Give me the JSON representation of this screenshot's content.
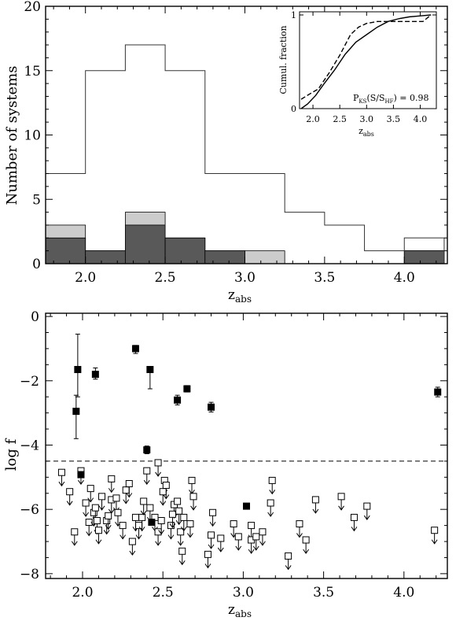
{
  "chart_data": [
    {
      "type": "bar",
      "ylabel": "Number of systems",
      "xlabel": "z",
      "xlabel_sub": "abs",
      "xlim": [
        1.75,
        4.27
      ],
      "ylim": [
        0,
        20
      ],
      "xticks": [
        "2.0",
        "2.5",
        "3.0",
        "3.5",
        "4.0"
      ],
      "xtick_values": [
        2.0,
        2.5,
        3.0,
        3.5,
        4.0
      ],
      "yticks": [
        "0",
        "5",
        "10",
        "15",
        "20"
      ],
      "ytick_values": [
        0,
        5,
        10,
        15,
        20
      ],
      "bin_edges": [
        1.75,
        2.0,
        2.25,
        2.5,
        2.75,
        3.0,
        3.25,
        3.5,
        3.75,
        4.0,
        4.25
      ],
      "series": [
        {
          "style": "outline",
          "values": [
            7,
            15,
            17,
            15,
            7,
            7,
            4,
            3,
            1,
            2
          ]
        },
        {
          "style": "light-gray",
          "values": [
            3,
            1,
            4,
            2,
            1,
            1,
            0,
            0,
            0,
            1
          ]
        },
        {
          "style": "dark-gray",
          "values": [
            2,
            1,
            3,
            2,
            1,
            0,
            0,
            0,
            0,
            1
          ]
        }
      ],
      "colors": {
        "outline": "#333333",
        "light": "#cccccc",
        "dark": "#595959"
      }
    },
    {
      "type": "line",
      "xlim": [
        1.75,
        4.3
      ],
      "ylim": [
        0,
        1
      ],
      "xticks": [
        "2.0",
        "2.5",
        "3.0",
        "3.5",
        "4.0"
      ],
      "xtick_values": [
        2.0,
        2.5,
        3.0,
        3.5,
        4.0
      ],
      "yticks": [
        "0",
        "1"
      ],
      "ytick_values": [
        0,
        1
      ],
      "ylabel": "Cumul. fraction",
      "xlabel": "z",
      "xlabel_sub": "abs",
      "annotation": {
        "main": "P",
        "sub1": "KS",
        "mid": "(S/S",
        "sub2": "HF",
        "tail": ") = 0.98"
      },
      "series": [
        {
          "style": "solid",
          "x": [
            1.78,
            1.9,
            2.05,
            2.2,
            2.4,
            2.6,
            2.8,
            3.0,
            3.2,
            3.4,
            3.6,
            3.8,
            4.0,
            4.2
          ],
          "y": [
            0.0,
            0.05,
            0.14,
            0.26,
            0.41,
            0.58,
            0.71,
            0.79,
            0.87,
            0.93,
            0.96,
            0.98,
            0.99,
            1.0
          ]
        },
        {
          "style": "dashed",
          "x": [
            1.78,
            1.95,
            2.1,
            2.3,
            2.5,
            2.7,
            2.85,
            3.0,
            3.2,
            3.4,
            3.6,
            3.8,
            4.05,
            4.2
          ],
          "y": [
            0.1,
            0.16,
            0.21,
            0.38,
            0.57,
            0.79,
            0.87,
            0.91,
            0.93,
            0.93,
            0.93,
            0.93,
            0.93,
            1.0
          ]
        }
      ]
    },
    {
      "type": "scatter",
      "ylabel": "log f",
      "xlabel": "z",
      "xlabel_sub": "abs",
      "xlim": [
        1.77,
        4.27
      ],
      "ylim": [
        -8.15,
        0.1
      ],
      "xticks": [
        "2.0",
        "2.5",
        "3.0",
        "3.5",
        "4.0"
      ],
      "xtick_values": [
        2.0,
        2.5,
        3.0,
        3.5,
        4.0
      ],
      "yticks": [
        "0",
        "−2",
        "−4",
        "−6",
        "−8"
      ],
      "ytick_values": [
        0,
        -2,
        -4,
        -6,
        -8
      ],
      "threshold": -4.5,
      "detections": [
        {
          "x": 1.96,
          "y": -2.95,
          "err_lo": 0.85,
          "err_hi": 0.5
        },
        {
          "x": 1.97,
          "y": -1.65,
          "err_lo": 0.85,
          "err_hi": 1.1
        },
        {
          "x": 2.08,
          "y": -1.8,
          "err_lo": 0.15,
          "err_hi": 0.2
        },
        {
          "x": 2.33,
          "y": -1.0,
          "err_lo": 0.15,
          "err_hi": 0.1
        },
        {
          "x": 2.42,
          "y": -1.65,
          "err_lo": 0.6,
          "err_hi": 0.0
        },
        {
          "x": 2.4,
          "y": -4.15,
          "err_lo": 0.12,
          "err_hi": 0.12
        },
        {
          "x": 2.59,
          "y": -2.6,
          "err_lo": 0.15,
          "err_hi": 0.15
        },
        {
          "x": 2.65,
          "y": -2.25,
          "err_lo": 0.1,
          "err_hi": 0.1
        },
        {
          "x": 2.8,
          "y": -2.82,
          "err_lo": 0.15,
          "err_hi": 0.15
        },
        {
          "x": 4.21,
          "y": -2.35,
          "err_lo": 0.15,
          "err_hi": 0.15
        }
      ],
      "detections_small": [
        {
          "x": 1.99,
          "y": -4.92
        },
        {
          "x": 2.43,
          "y": -6.4
        },
        {
          "x": 3.02,
          "y": -5.9
        }
      ],
      "upper_limits": [
        [
          1.87,
          -4.85
        ],
        [
          1.92,
          -5.45
        ],
        [
          1.95,
          -6.7
        ],
        [
          1.99,
          -4.8
        ],
        [
          2.02,
          -5.8
        ],
        [
          2.04,
          -6.4
        ],
        [
          2.05,
          -5.35
        ],
        [
          2.07,
          -6.1
        ],
        [
          2.08,
          -5.95
        ],
        [
          2.09,
          -6.35
        ],
        [
          2.1,
          -6.65
        ],
        [
          2.12,
          -5.6
        ],
        [
          2.15,
          -6.35
        ],
        [
          2.18,
          -5.05
        ],
        [
          2.16,
          -6.2
        ],
        [
          2.18,
          -5.7
        ],
        [
          2.21,
          -5.65
        ],
        [
          2.22,
          -6.1
        ],
        [
          2.25,
          -6.5
        ],
        [
          2.27,
          -5.4
        ],
        [
          2.29,
          -5.2
        ],
        [
          2.31,
          -7.0
        ],
        [
          2.33,
          -6.25
        ],
        [
          2.35,
          -6.5
        ],
        [
          2.37,
          -6.25
        ],
        [
          2.38,
          -5.75
        ],
        [
          2.4,
          -4.8
        ],
        [
          2.42,
          -5.95
        ],
        [
          2.45,
          -6.25
        ],
        [
          2.47,
          -4.55
        ],
        [
          2.47,
          -6.7
        ],
        [
          2.49,
          -6.35
        ],
        [
          2.51,
          -5.1
        ],
        [
          2.52,
          -5.25
        ],
        [
          2.5,
          -5.45
        ],
        [
          2.55,
          -6.5
        ],
        [
          2.57,
          -5.85
        ],
        [
          2.56,
          -6.15
        ],
        [
          2.59,
          -5.75
        ],
        [
          2.6,
          -6.05
        ],
        [
          2.61,
          -6.7
        ],
        [
          2.62,
          -7.3
        ],
        [
          2.63,
          -6.25
        ],
        [
          2.67,
          -6.45
        ],
        [
          2.68,
          -5.1
        ],
        [
          2.69,
          -5.6
        ],
        [
          2.78,
          -7.4
        ],
        [
          2.8,
          -6.8
        ],
        [
          2.81,
          -6.1
        ],
        [
          2.86,
          -6.9
        ],
        [
          2.94,
          -6.45
        ],
        [
          2.97,
          -6.85
        ],
        [
          3.05,
          -6.5
        ],
        [
          3.05,
          -6.95
        ],
        [
          3.08,
          -6.85
        ],
        [
          3.12,
          -6.7
        ],
        [
          3.17,
          -5.8
        ],
        [
          3.18,
          -5.1
        ],
        [
          3.28,
          -7.45
        ],
        [
          3.35,
          -6.45
        ],
        [
          3.39,
          -6.95
        ],
        [
          3.45,
          -5.7
        ],
        [
          3.61,
          -5.6
        ],
        [
          3.69,
          -6.25
        ],
        [
          3.77,
          -5.9
        ],
        [
          4.19,
          -6.65
        ]
      ]
    }
  ]
}
